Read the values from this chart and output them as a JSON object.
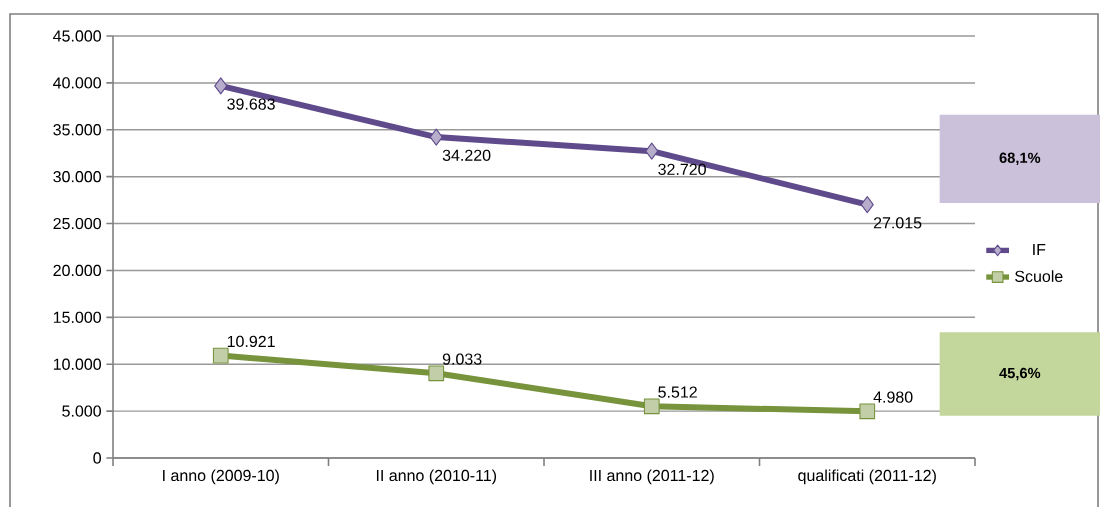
{
  "chart_data": {
    "type": "line",
    "categories": [
      "I anno  (2009-10)",
      "II anno  (2010-11)",
      "III anno  (2011-12)",
      "qualificati (2011-12)"
    ],
    "series": [
      {
        "name": "IF",
        "color": "#5f4a8b",
        "marker": "diamond",
        "values": [
          39683,
          34220,
          32720,
          27015
        ],
        "value_labels": [
          "39.683",
          "34.220",
          "32.720",
          "27.015"
        ]
      },
      {
        "name": "Scuole",
        "color": "#77933c",
        "marker": "square",
        "values": [
          10921,
          9033,
          5512,
          4980
        ],
        "value_labels": [
          "10.921",
          "9.033",
          "5.512",
          "4.980"
        ]
      }
    ],
    "ylim": [
      0,
      45000
    ],
    "yticks": [
      0,
      {
        "value": 5000,
        "label": "5.000"
      },
      {
        "value": 10000,
        "label": "10.000"
      },
      {
        "value": 15000,
        "label": "15.000"
      },
      {
        "value": 20000,
        "label": "20.000"
      },
      {
        "value": 25000,
        "label": "25.000"
      },
      {
        "value": 30000,
        "label": "30.000"
      },
      {
        "value": 35000,
        "label": "35.000"
      },
      {
        "value": 40000,
        "label": "40.000"
      },
      {
        "value": 45000,
        "label": "45.000"
      }
    ],
    "grid": "y",
    "legend": "right",
    "bands": [
      {
        "axis": "y",
        "from": 27200,
        "to": 36600,
        "label": "68,1%",
        "color": "#ccc1da"
      },
      {
        "axis": "y",
        "from": 4500,
        "to": 13400,
        "label": "45,6%",
        "color": "#c3d69b"
      }
    ]
  }
}
